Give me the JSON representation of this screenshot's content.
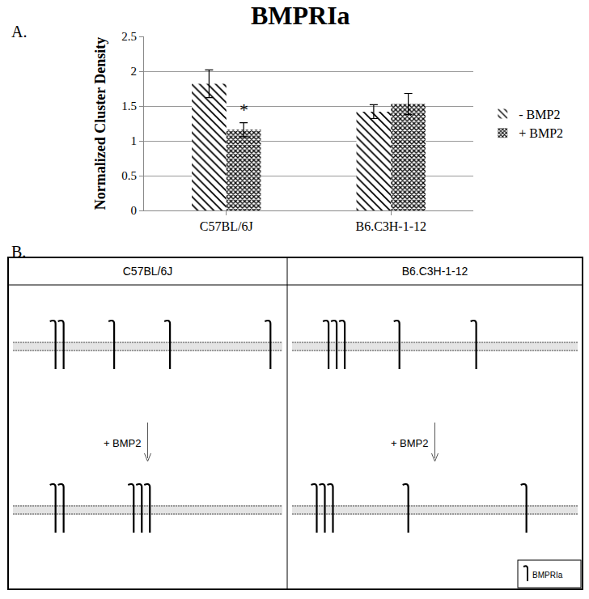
{
  "chart_data": {
    "type": "bar",
    "title": "BMPRIa",
    "y_label": "Normalized Cluster Density",
    "categories": [
      "C57BL/6J",
      "B6.C3H-1-12"
    ],
    "series": [
      {
        "name": "- BMP2",
        "color": "#000000",
        "marker": "hatch",
        "values": [
          1.82,
          1.42
        ],
        "errors": [
          0.2,
          0.1
        ]
      },
      {
        "name": "+ BMP2",
        "color": "#000000",
        "marker": "crosshatch",
        "values": [
          1.16,
          1.53
        ],
        "errors": [
          0.1,
          0.15
        ]
      }
    ],
    "annotations": [
      {
        "text": "*",
        "category": "C57BL/6J",
        "series": "+ BMP2"
      }
    ],
    "ylim": [
      0,
      2.5
    ],
    "yticks": [
      0,
      0.5,
      1,
      1.5,
      2,
      2.5
    ],
    "grid": true,
    "legend": "right"
  },
  "panel_labels": [
    "A.",
    "B."
  ],
  "diagram": {
    "columns": [
      "C57BL/6J",
      "B6.C3H-1-12"
    ],
    "treatment": "+ BMP2",
    "clusters": [
      {
        "before": [
          2,
          1,
          1,
          1
        ],
        "after": [
          2,
          3
        ]
      },
      {
        "before": [
          3,
          1,
          1
        ],
        "after": [
          3,
          1,
          1
        ]
      }
    ],
    "legend": "BMPRIa"
  }
}
